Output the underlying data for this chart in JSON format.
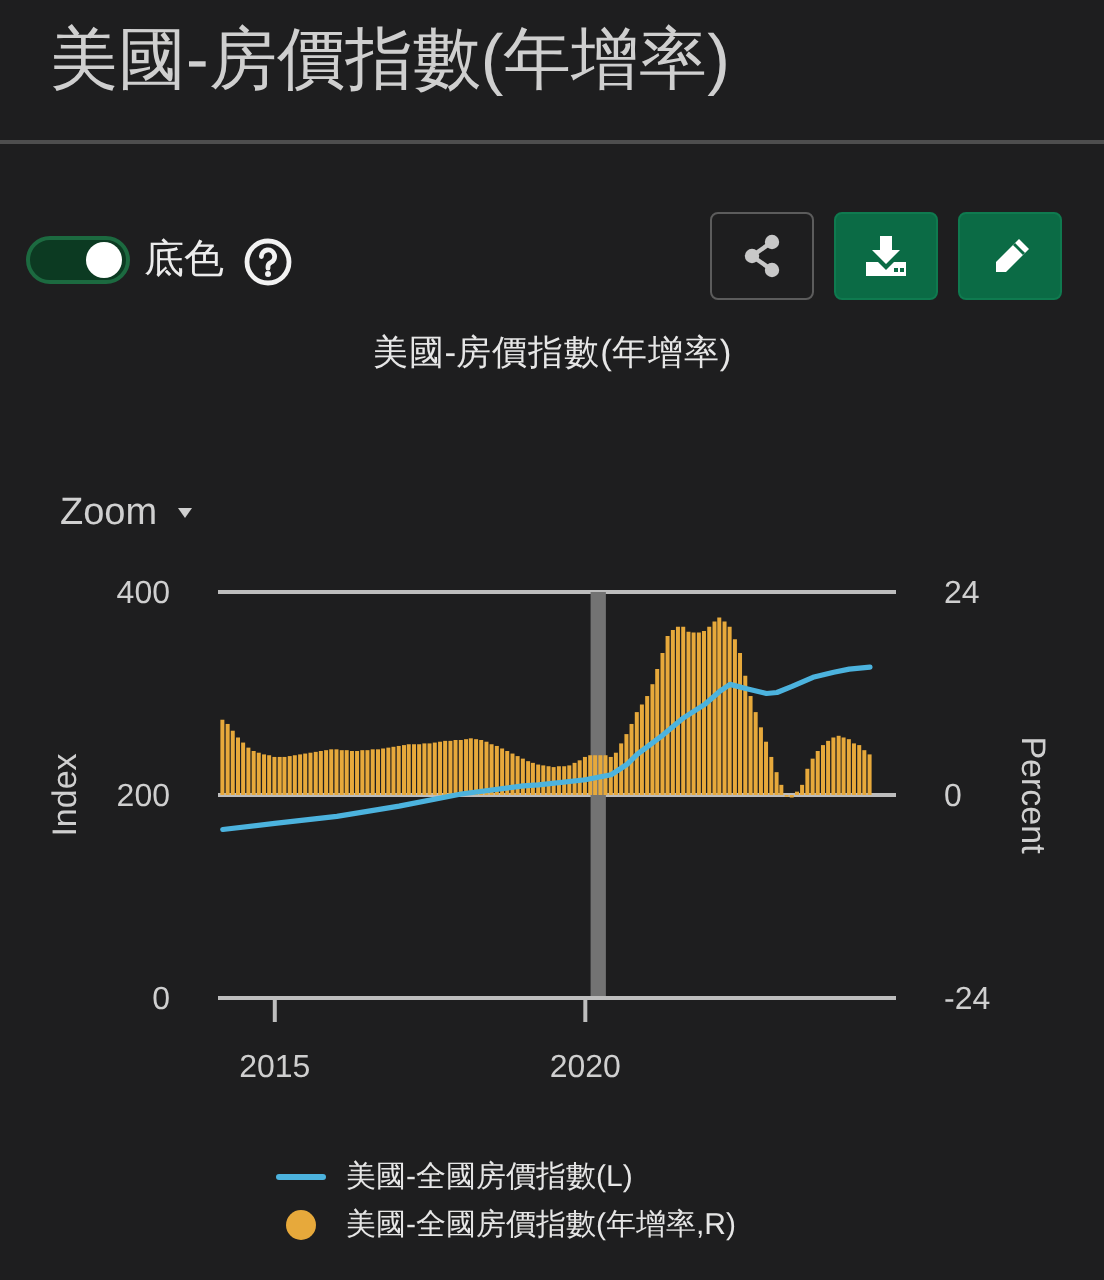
{
  "chart_data": {
    "type": "bar",
    "title": "美國-房價指數(年增率)",
    "subtitle": "美國-房價指數(年增率)",
    "annotations": [
      "底色",
      "Zoom"
    ],
    "ylabel": "Index",
    "y2label": "Percent",
    "xlim": [
      "2014-02",
      "2025-01"
    ],
    "xticks": [
      "2015",
      "2020"
    ],
    "ylim": [
      0,
      400
    ],
    "yticks": [
      0,
      200,
      400
    ],
    "y2lim": [
      -24,
      24
    ],
    "y2ticks": [
      -24,
      0,
      24
    ],
    "grid": "y",
    "legend": "bottom",
    "bands": [
      {
        "axis": "x",
        "from": "2020-02",
        "to": "2020-05",
        "color": "#737373"
      }
    ],
    "series": [
      {
        "name": "美國-全國房價指數(L)",
        "type": "line",
        "color": "#4cb3de",
        "x": [
          "2014-03",
          "2015-01",
          "2016-01",
          "2017-01",
          "2018-01",
          "2019-01",
          "2019-04",
          "2020-01",
          "2020-06",
          "2020-09",
          "2020-11",
          "2021-04",
          "2021-08",
          "2021-12",
          "2022-03",
          "2022-05",
          "2022-08",
          "2022-12",
          "2023-02",
          "2023-05",
          "2023-09",
          "2024-01",
          "2024-04",
          "2024-08"
        ],
        "values": [
          166,
          172,
          179,
          189,
          201,
          209,
          210,
          215,
          220,
          230,
          240,
          259,
          276,
          289,
          302,
          309,
          305,
          300,
          301,
          307,
          316,
          321,
          324,
          326
        ]
      },
      {
        "name": "美國-全國房價指數(年增率,R)",
        "axis": "y2",
        "color": "#e7a93b",
        "x": [
          "2014-03",
          "2014-04",
          "2014-05",
          "2014-06",
          "2014-07",
          "2014-08",
          "2014-09",
          "2014-10",
          "2014-11",
          "2014-12",
          "2015-01",
          "2015-02",
          "2015-03",
          "2015-04",
          "2015-05",
          "2015-06",
          "2015-07",
          "2015-08",
          "2015-09",
          "2015-10",
          "2015-11",
          "2015-12",
          "2016-01",
          "2016-02",
          "2016-03",
          "2016-04",
          "2016-05",
          "2016-06",
          "2016-07",
          "2016-08",
          "2016-09",
          "2016-10",
          "2016-11",
          "2016-12",
          "2017-01",
          "2017-02",
          "2017-03",
          "2017-04",
          "2017-05",
          "2017-06",
          "2017-07",
          "2017-08",
          "2017-09",
          "2017-10",
          "2017-11",
          "2017-12",
          "2018-01",
          "2018-02",
          "2018-03",
          "2018-04",
          "2018-05",
          "2018-06",
          "2018-07",
          "2018-08",
          "2018-09",
          "2018-10",
          "2018-11",
          "2018-12",
          "2019-01",
          "2019-02",
          "2019-03",
          "2019-04",
          "2019-05",
          "2019-06",
          "2019-07",
          "2019-08",
          "2019-09",
          "2019-10",
          "2019-11",
          "2019-12",
          "2020-01",
          "2020-02",
          "2020-03",
          "2020-04",
          "2020-05",
          "2020-06",
          "2020-07",
          "2020-08",
          "2020-09",
          "2020-10",
          "2020-11",
          "2020-12",
          "2021-01",
          "2021-02",
          "2021-03",
          "2021-04",
          "2021-05",
          "2021-06",
          "2021-07",
          "2021-08",
          "2021-09",
          "2021-10",
          "2021-11",
          "2021-12",
          "2022-01",
          "2022-02",
          "2022-03",
          "2022-04",
          "2022-05",
          "2022-06",
          "2022-07",
          "2022-08",
          "2022-09",
          "2022-10",
          "2022-11",
          "2022-12",
          "2023-01",
          "2023-02",
          "2023-03",
          "2023-04",
          "2023-05",
          "2023-06",
          "2023-07",
          "2023-08",
          "2023-09",
          "2023-10",
          "2023-11",
          "2023-12",
          "2024-01",
          "2024-02",
          "2024-03",
          "2024-04",
          "2024-05",
          "2024-06",
          "2024-07",
          "2024-08"
        ],
        "values": [
          8.9,
          8.4,
          7.6,
          6.8,
          6.2,
          5.6,
          5.2,
          5.0,
          4.8,
          4.7,
          4.5,
          4.5,
          4.5,
          4.6,
          4.7,
          4.8,
          4.9,
          5.0,
          5.1,
          5.2,
          5.3,
          5.4,
          5.4,
          5.3,
          5.3,
          5.2,
          5.2,
          5.3,
          5.3,
          5.4,
          5.4,
          5.5,
          5.6,
          5.7,
          5.8,
          5.9,
          6.0,
          6.0,
          6.0,
          6.1,
          6.1,
          6.2,
          6.3,
          6.4,
          6.4,
          6.5,
          6.5,
          6.6,
          6.7,
          6.6,
          6.5,
          6.3,
          6.0,
          5.8,
          5.5,
          5.2,
          4.9,
          4.6,
          4.3,
          4.0,
          3.8,
          3.6,
          3.5,
          3.4,
          3.3,
          3.4,
          3.4,
          3.5,
          3.8,
          4.1,
          4.5,
          4.7,
          4.7,
          4.7,
          4.7,
          4.5,
          5.0,
          6.1,
          7.2,
          8.4,
          9.8,
          10.7,
          11.7,
          13.1,
          14.9,
          16.8,
          18.8,
          19.5,
          19.9,
          19.9,
          19.3,
          19.2,
          19.2,
          19.4,
          19.9,
          20.5,
          21.0,
          20.5,
          19.9,
          18.4,
          16.8,
          14.1,
          11.7,
          9.8,
          8.0,
          6.3,
          4.5,
          2.7,
          1.2,
          -0.2,
          -0.3,
          0.4,
          1.2,
          3.1,
          4.3,
          5.2,
          5.9,
          6.4,
          6.8,
          7.0,
          6.8,
          6.6,
          6.1,
          5.9,
          5.3,
          4.8
        ]
      }
    ]
  }
}
